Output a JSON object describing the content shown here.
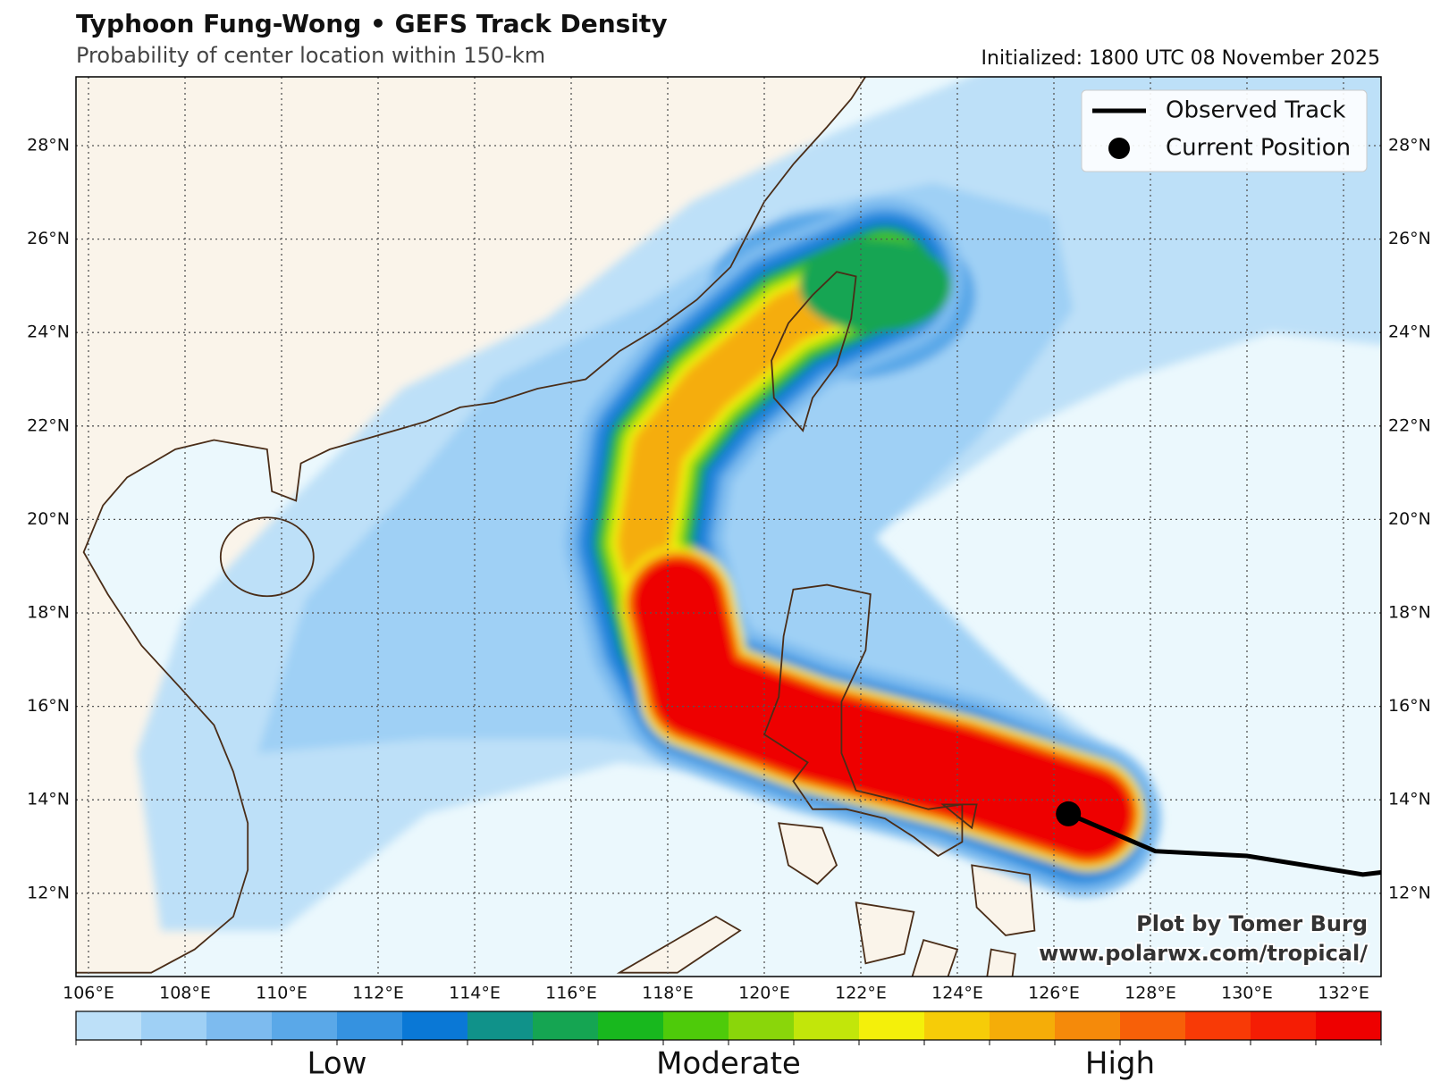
{
  "header": {
    "title": "Typhoon Fung-Wong • GEFS Track Density",
    "subtitle": "Probability of center location within 150-km",
    "initialized": "Initialized: 1800 UTC 08 November 2025"
  },
  "map": {
    "lat_labels": [
      "12°N",
      "14°N",
      "16°N",
      "18°N",
      "20°N",
      "22°N",
      "24°N",
      "26°N",
      "28°N"
    ],
    "lon_labels": [
      "106°E",
      "108°E",
      "110°E",
      "112°E",
      "114°E",
      "116°E",
      "118°E",
      "120°E",
      "122°E",
      "124°E",
      "126°E",
      "128°E",
      "130°E",
      "132°E"
    ]
  },
  "legend": {
    "items": [
      "Observed Track",
      "Current Position"
    ]
  },
  "credit": [
    "Plot by Tomer Burg",
    "www.polarwx.com/tropical/"
  ],
  "colorbar": {
    "labels": [
      "Low",
      "Moderate",
      "High"
    ],
    "colors": [
      "#bde0f8",
      "#9fd0f5",
      "#7dbbef",
      "#5aa8e8",
      "#3592e0",
      "#0a78d6",
      "#10928a",
      "#15a552",
      "#18b81e",
      "#4ecb0a",
      "#8ad60a",
      "#c2e60a",
      "#f4f00a",
      "#f6cc08",
      "#f5ad08",
      "#f58a0a",
      "#f76008",
      "#f83a06",
      "#f51d04",
      "#ee0000"
    ]
  }
}
